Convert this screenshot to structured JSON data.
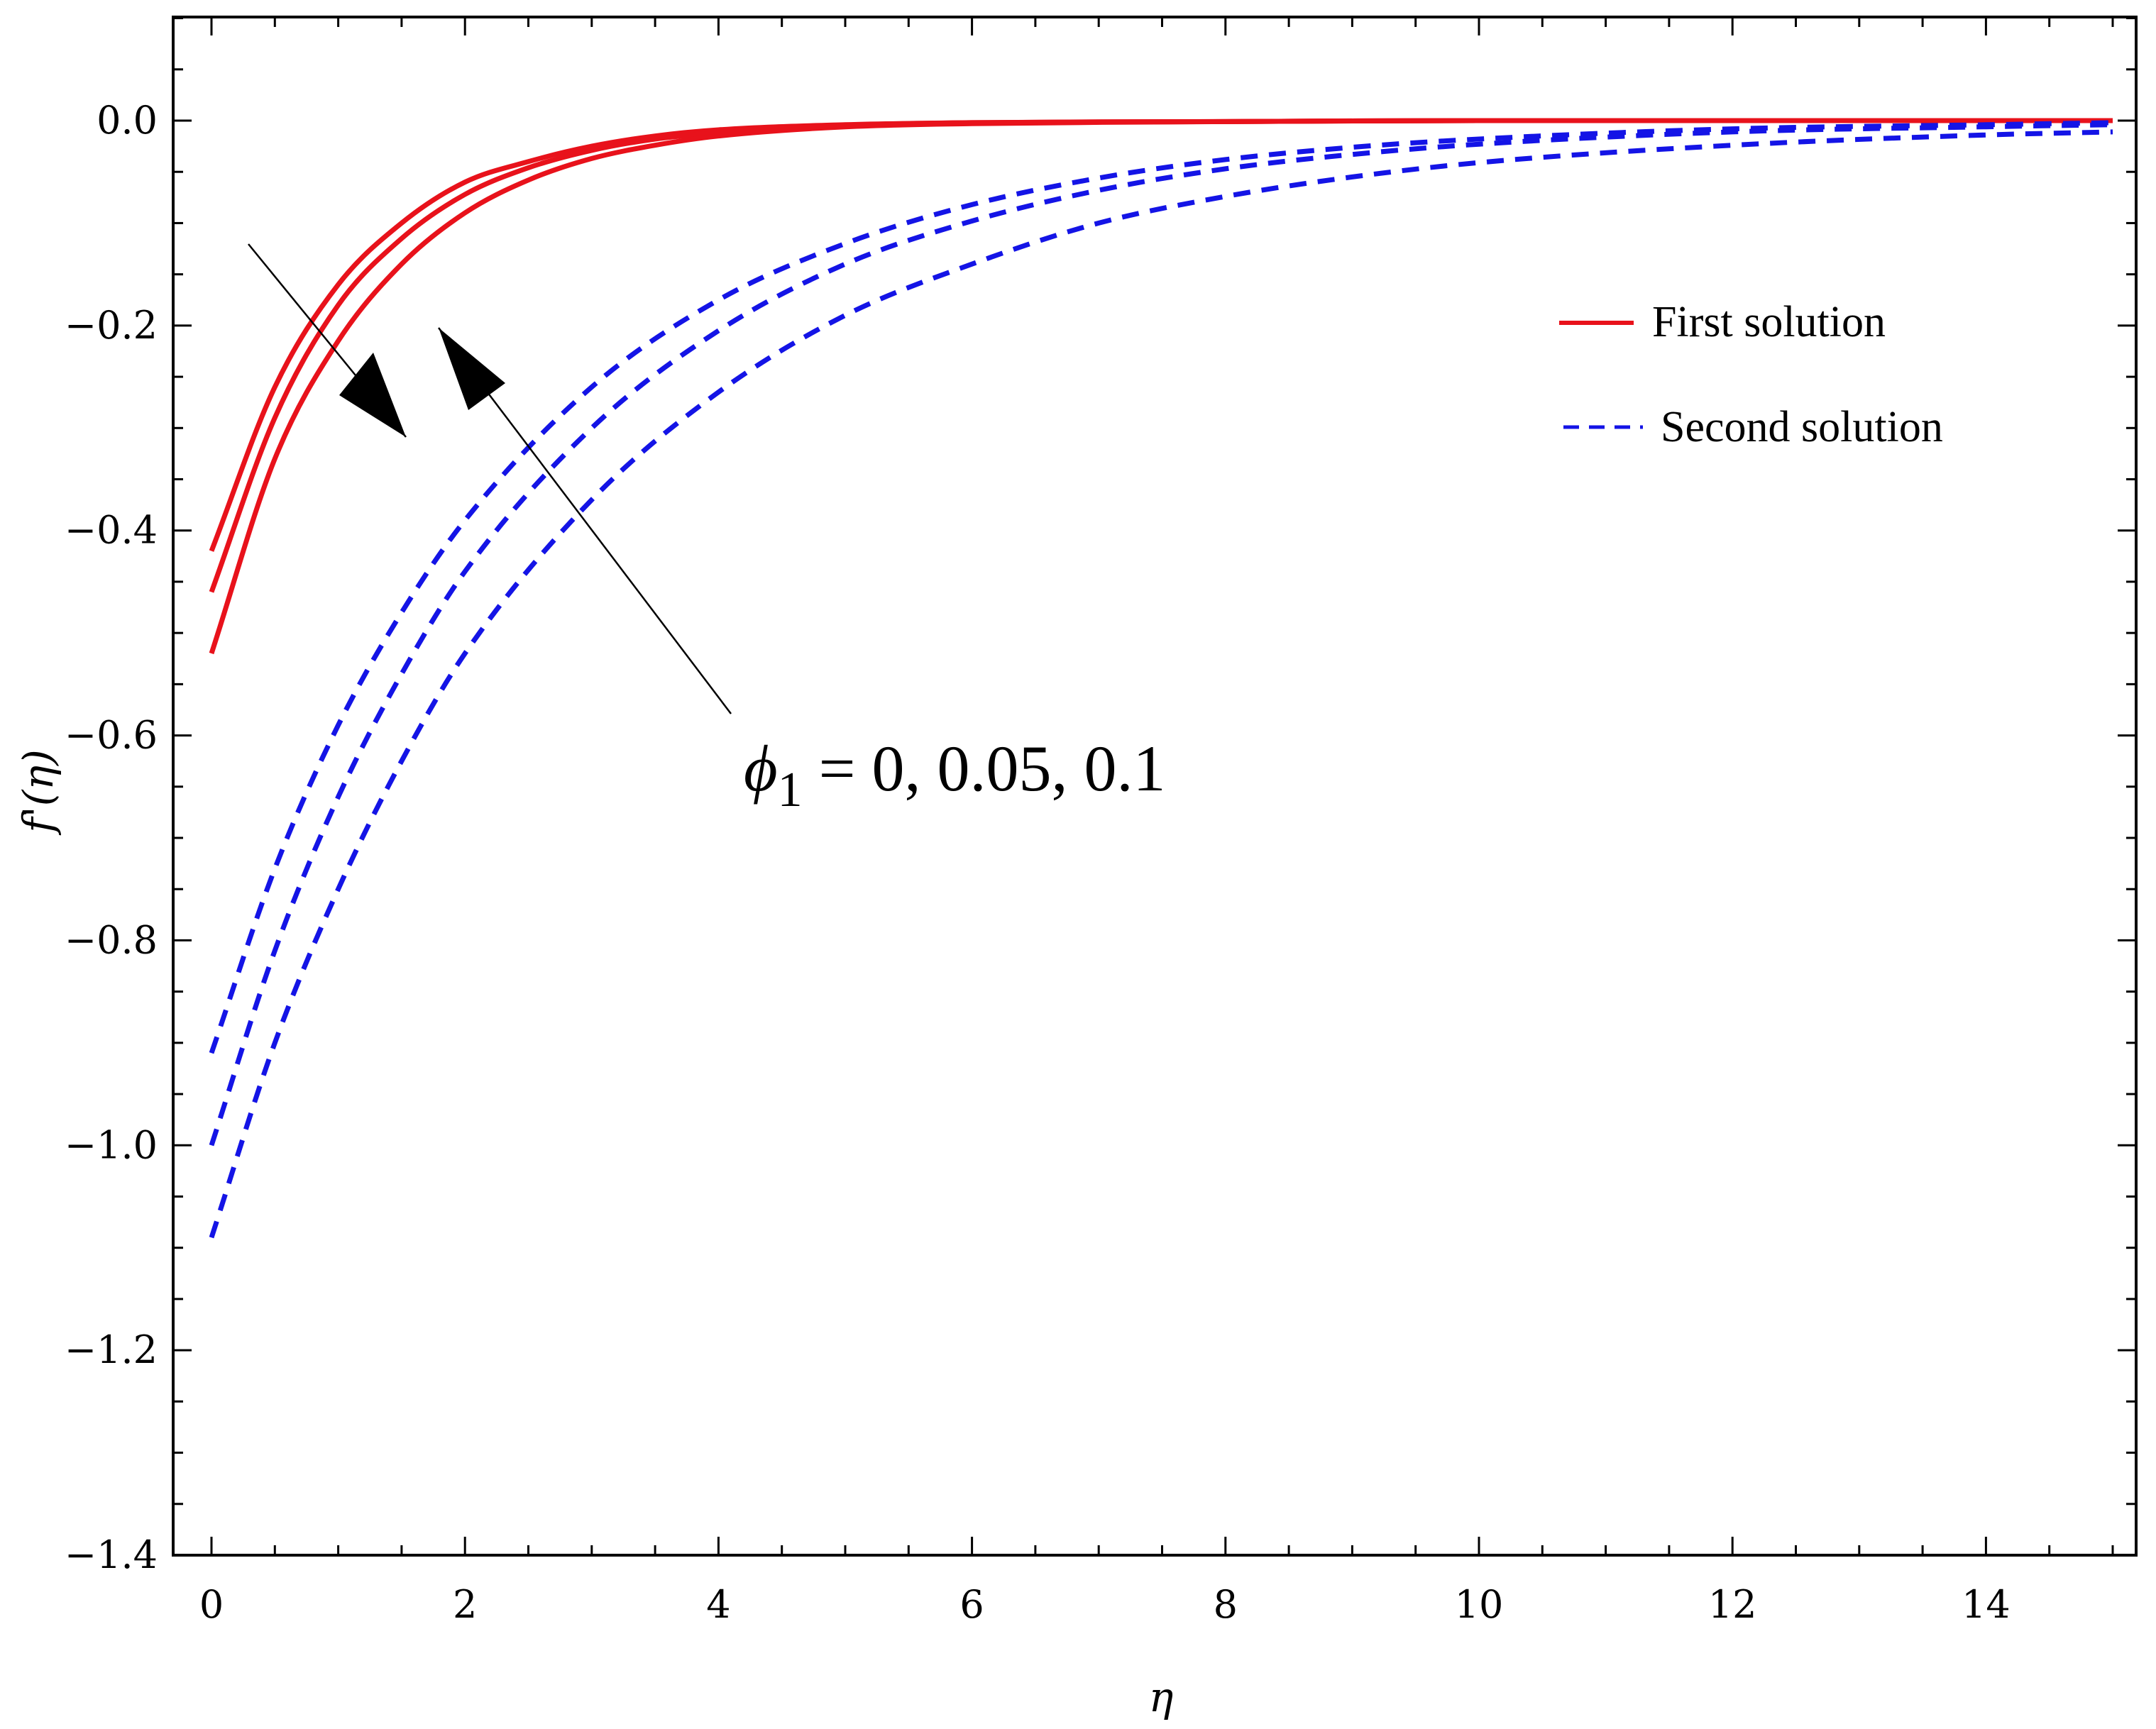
{
  "chart_data": {
    "type": "line",
    "xlabel": "η",
    "ylabel": "f'(η)",
    "xlim": [
      0,
      15
    ],
    "ylim": [
      -1.4,
      0.1
    ],
    "x_ticks": [
      0,
      2,
      4,
      6,
      8,
      10,
      12,
      14
    ],
    "x_tick_labels": [
      "0",
      "2",
      "4",
      "6",
      "8",
      "10",
      "12",
      "14"
    ],
    "y_ticks": [
      0.0,
      -0.2,
      -0.4,
      -0.6,
      -0.8,
      -1.0,
      -1.2,
      -1.4
    ],
    "y_tick_labels": [
      "0.0",
      "−0.2",
      "−0.4",
      "−0.6",
      "−0.8",
      "−1.0",
      "−1.2",
      "−1.4"
    ],
    "grid": false,
    "legend_position": "top-right",
    "legend": [
      {
        "label": "First solution",
        "style": "solid",
        "color": "#e8121b"
      },
      {
        "label": "Second solution",
        "style": "dashed",
        "color": "#1414e6"
      }
    ],
    "annotation": {
      "text": "ϕ1 = 0, 0.05, 0.1",
      "symbol": "ϕ",
      "subscript": "1",
      "rest": " = 0, 0.05, 0.1"
    },
    "series": [
      {
        "group": "First solution",
        "color": "#e8121b",
        "style": "solid",
        "x": [
          0,
          0.5,
          1,
          1.5,
          2,
          2.5,
          3,
          3.5,
          4,
          5,
          6,
          8,
          10,
          12,
          15
        ],
        "y": [
          -0.42,
          -0.26,
          -0.16,
          -0.1,
          -0.06,
          -0.04,
          -0.025,
          -0.015,
          -0.009,
          -0.004,
          -0.002,
          -0.001,
          0.0,
          0.0,
          0.0
        ]
      },
      {
        "group": "First solution",
        "color": "#e8121b",
        "style": "solid",
        "x": [
          0,
          0.5,
          1,
          1.5,
          2,
          2.5,
          3,
          3.5,
          4,
          5,
          6,
          8,
          10,
          12,
          15
        ],
        "y": [
          -0.46,
          -0.29,
          -0.18,
          -0.115,
          -0.072,
          -0.046,
          -0.029,
          -0.018,
          -0.012,
          -0.005,
          -0.002,
          -0.001,
          0.0,
          0.0,
          0.0
        ]
      },
      {
        "group": "First solution",
        "color": "#e8121b",
        "style": "solid",
        "x": [
          0,
          0.5,
          1,
          1.5,
          2,
          2.5,
          3,
          3.5,
          4,
          5,
          6,
          8,
          10,
          12,
          15
        ],
        "y": [
          -0.52,
          -0.33,
          -0.215,
          -0.14,
          -0.09,
          -0.058,
          -0.037,
          -0.024,
          -0.015,
          -0.006,
          -0.003,
          -0.001,
          0.0,
          0.0,
          0.0
        ]
      },
      {
        "group": "Second solution",
        "color": "#1414e6",
        "style": "dashed",
        "x": [
          0,
          0.5,
          1,
          1.5,
          2,
          3,
          4,
          5,
          6,
          7,
          8,
          9,
          10,
          12,
          14,
          15
        ],
        "y": [
          -0.91,
          -0.73,
          -0.59,
          -0.48,
          -0.39,
          -0.26,
          -0.175,
          -0.12,
          -0.082,
          -0.056,
          -0.038,
          -0.026,
          -0.018,
          -0.008,
          -0.004,
          -0.002
        ]
      },
      {
        "group": "Second solution",
        "color": "#1414e6",
        "style": "dashed",
        "x": [
          0,
          0.5,
          1,
          1.5,
          2,
          3,
          4,
          5,
          6,
          7,
          8,
          9,
          10,
          12,
          14,
          15
        ],
        "y": [
          -1.0,
          -0.81,
          -0.66,
          -0.54,
          -0.44,
          -0.3,
          -0.205,
          -0.14,
          -0.098,
          -0.068,
          -0.047,
          -0.033,
          -0.023,
          -0.011,
          -0.006,
          -0.004
        ]
      },
      {
        "group": "Second solution",
        "color": "#1414e6",
        "style": "dashed",
        "x": [
          0,
          0.5,
          1,
          1.5,
          2,
          3,
          4,
          5,
          6,
          7,
          8,
          9,
          10,
          12,
          14,
          15
        ],
        "y": [
          -1.09,
          -0.9,
          -0.75,
          -0.625,
          -0.52,
          -0.37,
          -0.265,
          -0.19,
          -0.14,
          -0.1,
          -0.074,
          -0.055,
          -0.041,
          -0.024,
          -0.014,
          -0.011
        ]
      }
    ]
  }
}
